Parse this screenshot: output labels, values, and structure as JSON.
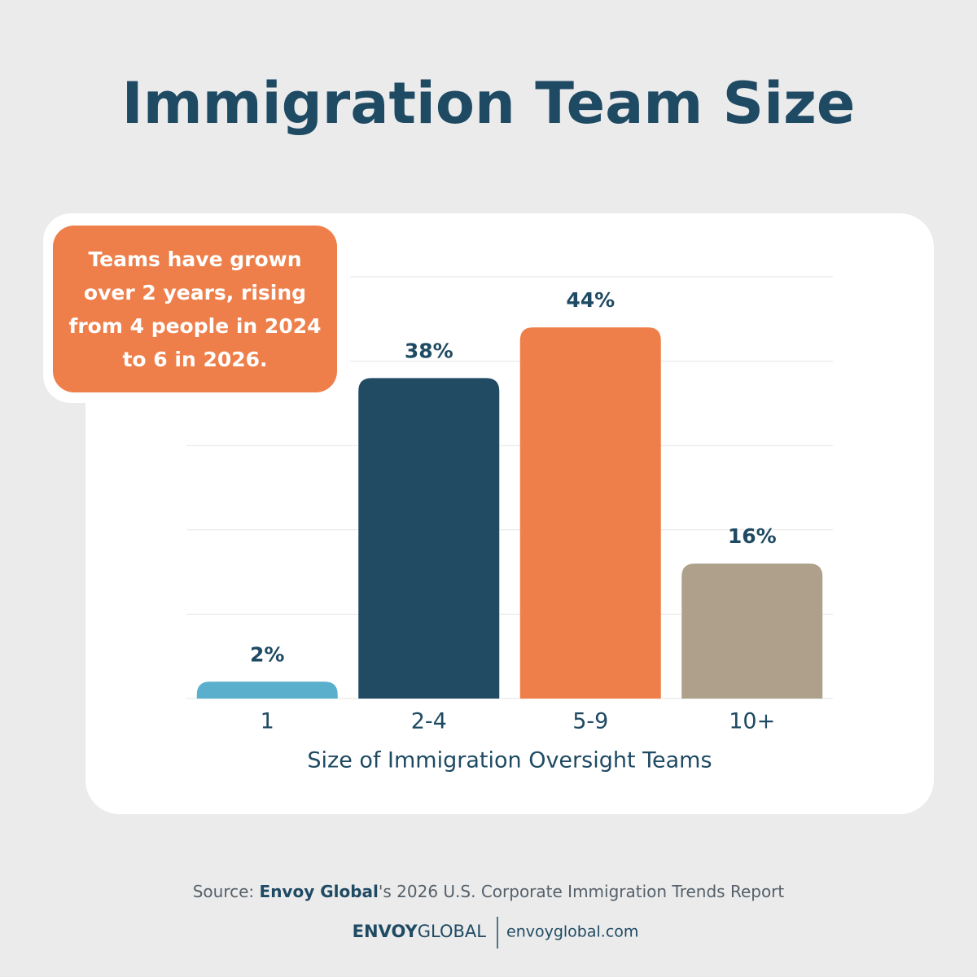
{
  "chart_data": {
    "type": "bar",
    "title": "Immigration Team Size",
    "annotation": "Teams have grown over 2 years, rising from 4 people in 2024 to 6 in 2026.",
    "x_label": "Size of Immigration Oversight Teams",
    "categories": [
      "1",
      "2-4",
      "5-9",
      "10+"
    ],
    "values": [
      2,
      38,
      44,
      16
    ],
    "value_labels": [
      "2%",
      "38%",
      "44%",
      "16%"
    ],
    "colors": [
      "#5ab0cc",
      "#214a63",
      "#ee7f4a",
      "#aea08a"
    ],
    "ylim": [
      0,
      50
    ],
    "yticks": [
      0,
      10,
      20,
      30,
      40,
      50
    ],
    "grid": true
  },
  "footer": {
    "source_prefix": "Source:",
    "source_brand": "Envoy Global",
    "source_rest": "'s 2026 U.S. Corporate Immigration Trends Report",
    "logo_bold": "ENVOY",
    "logo_light": "GLOBAL",
    "website": "envoyglobal.com"
  }
}
